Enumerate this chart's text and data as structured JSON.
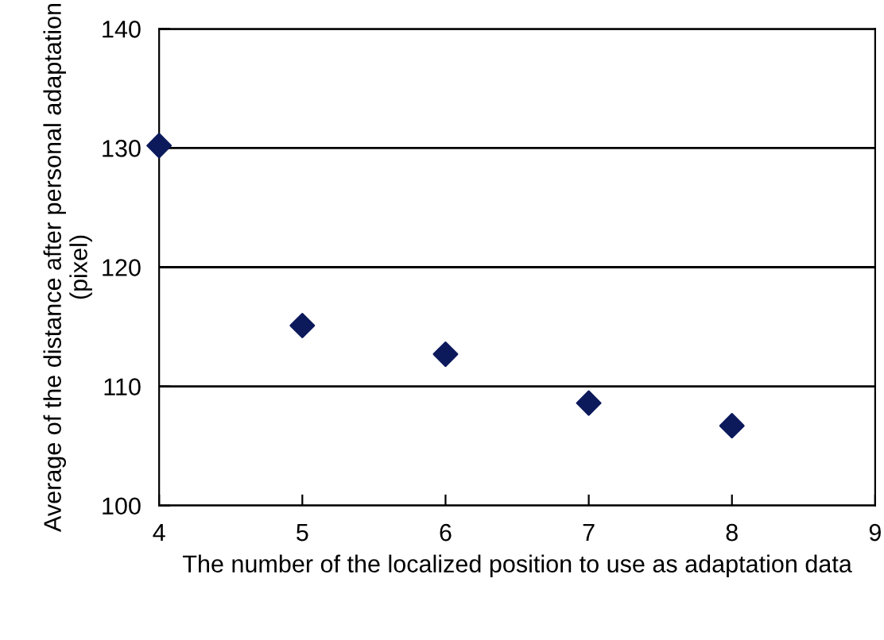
{
  "chart_data": {
    "type": "scatter",
    "xlabel": "The number of the localized position to use as adaptation data",
    "ylabel": "Average of the distance after personal adaptation (pixel)",
    "x": [
      4,
      5,
      6,
      7,
      8
    ],
    "series": [
      {
        "color": "#0c1a5c",
        "values": [
          130.2,
          115.1,
          112.7,
          108.6,
          106.7
        ]
      }
    ],
    "xlim": [
      4,
      9
    ],
    "xticks": [
      4,
      5,
      6,
      7,
      8,
      9
    ],
    "ylim": [
      100,
      140
    ],
    "yticks": [
      100,
      110,
      120,
      130,
      140
    ],
    "grid": "y",
    "marker": "diamond",
    "legend": false
  }
}
